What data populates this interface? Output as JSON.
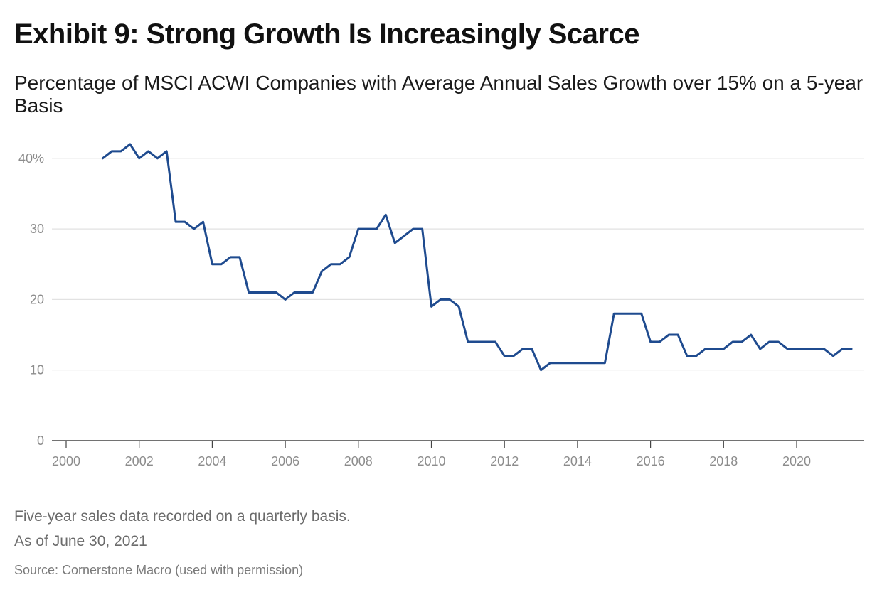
{
  "header": {
    "title": "Exhibit 9: Strong Growth Is Increasingly Scarce",
    "subtitle": "Percentage of MSCI ACWI Companies with Average Annual Sales Growth over 15% on a 5-year Basis"
  },
  "footer": {
    "note1": "Five-year sales data recorded on a quarterly basis.",
    "note2": "As of June 30, 2021",
    "source": "Source: Cornerstone Macro (used with permission)"
  },
  "colors": {
    "line": "#1f4b8f",
    "grid": "#e2e2e2",
    "axis": "#444444",
    "tick_text": "#8c8c8c"
  },
  "chart_data": {
    "type": "line",
    "title": "",
    "xlabel": "",
    "ylabel": "",
    "xlim": [
      2000,
      2021.8
    ],
    "ylim": [
      0,
      42
    ],
    "y_ticks": [
      0,
      10,
      20,
      30,
      40
    ],
    "y_tick_labels": [
      "0",
      "10",
      "20",
      "30",
      "40%"
    ],
    "x_ticks": [
      2000,
      2002,
      2004,
      2006,
      2008,
      2010,
      2012,
      2014,
      2016,
      2018,
      2020
    ],
    "x_tick_labels": [
      "2000",
      "2002",
      "2004",
      "2006",
      "2008",
      "2010",
      "2012",
      "2014",
      "2016",
      "2018",
      "2020"
    ],
    "grid": "horizontal",
    "legend": "none",
    "series": [
      {
        "x": [
          2001.0,
          2001.25,
          2001.5,
          2001.75,
          2002.0,
          2002.25,
          2002.5,
          2002.75,
          2003.0,
          2003.25,
          2003.5,
          2003.75,
          2004.0,
          2004.25,
          2004.5,
          2004.75,
          2005.0,
          2005.25,
          2005.5,
          2005.75,
          2006.0,
          2006.25,
          2006.5,
          2006.75,
          2007.0,
          2007.25,
          2007.5,
          2007.75,
          2008.0,
          2008.25,
          2008.5,
          2008.75,
          2009.0,
          2009.25,
          2009.5,
          2009.75,
          2010.0,
          2010.25,
          2010.5,
          2010.75,
          2011.0,
          2011.25,
          2011.5,
          2011.75,
          2012.0,
          2012.25,
          2012.5,
          2012.75,
          2013.0,
          2013.25,
          2013.5,
          2013.75,
          2014.0,
          2014.25,
          2014.5,
          2014.75,
          2015.0,
          2015.25,
          2015.5,
          2015.75,
          2016.0,
          2016.25,
          2016.5,
          2016.75,
          2017.0,
          2017.25,
          2017.5,
          2017.75,
          2018.0,
          2018.25,
          2018.5,
          2018.75,
          2019.0,
          2019.25,
          2019.5,
          2019.75,
          2020.0,
          2020.25,
          2020.5,
          2020.75,
          2021.0,
          2021.25,
          2021.5
        ],
        "values": [
          40,
          41,
          41,
          42,
          40,
          41,
          40,
          41,
          31,
          31,
          30,
          31,
          25,
          25,
          26,
          26,
          21,
          21,
          21,
          21,
          20,
          21,
          21,
          21,
          24,
          25,
          25,
          26,
          30,
          30,
          30,
          32,
          28,
          29,
          30,
          30,
          19,
          20,
          20,
          19,
          14,
          14,
          14,
          14,
          12,
          12,
          13,
          13,
          10,
          11,
          11,
          11,
          11,
          11,
          11,
          11,
          18,
          18,
          18,
          18,
          14,
          14,
          15,
          15,
          12,
          12,
          13,
          13,
          13,
          14,
          14,
          15,
          13,
          14,
          14,
          13,
          13,
          13,
          13,
          13,
          12,
          13,
          13
        ]
      }
    ]
  }
}
